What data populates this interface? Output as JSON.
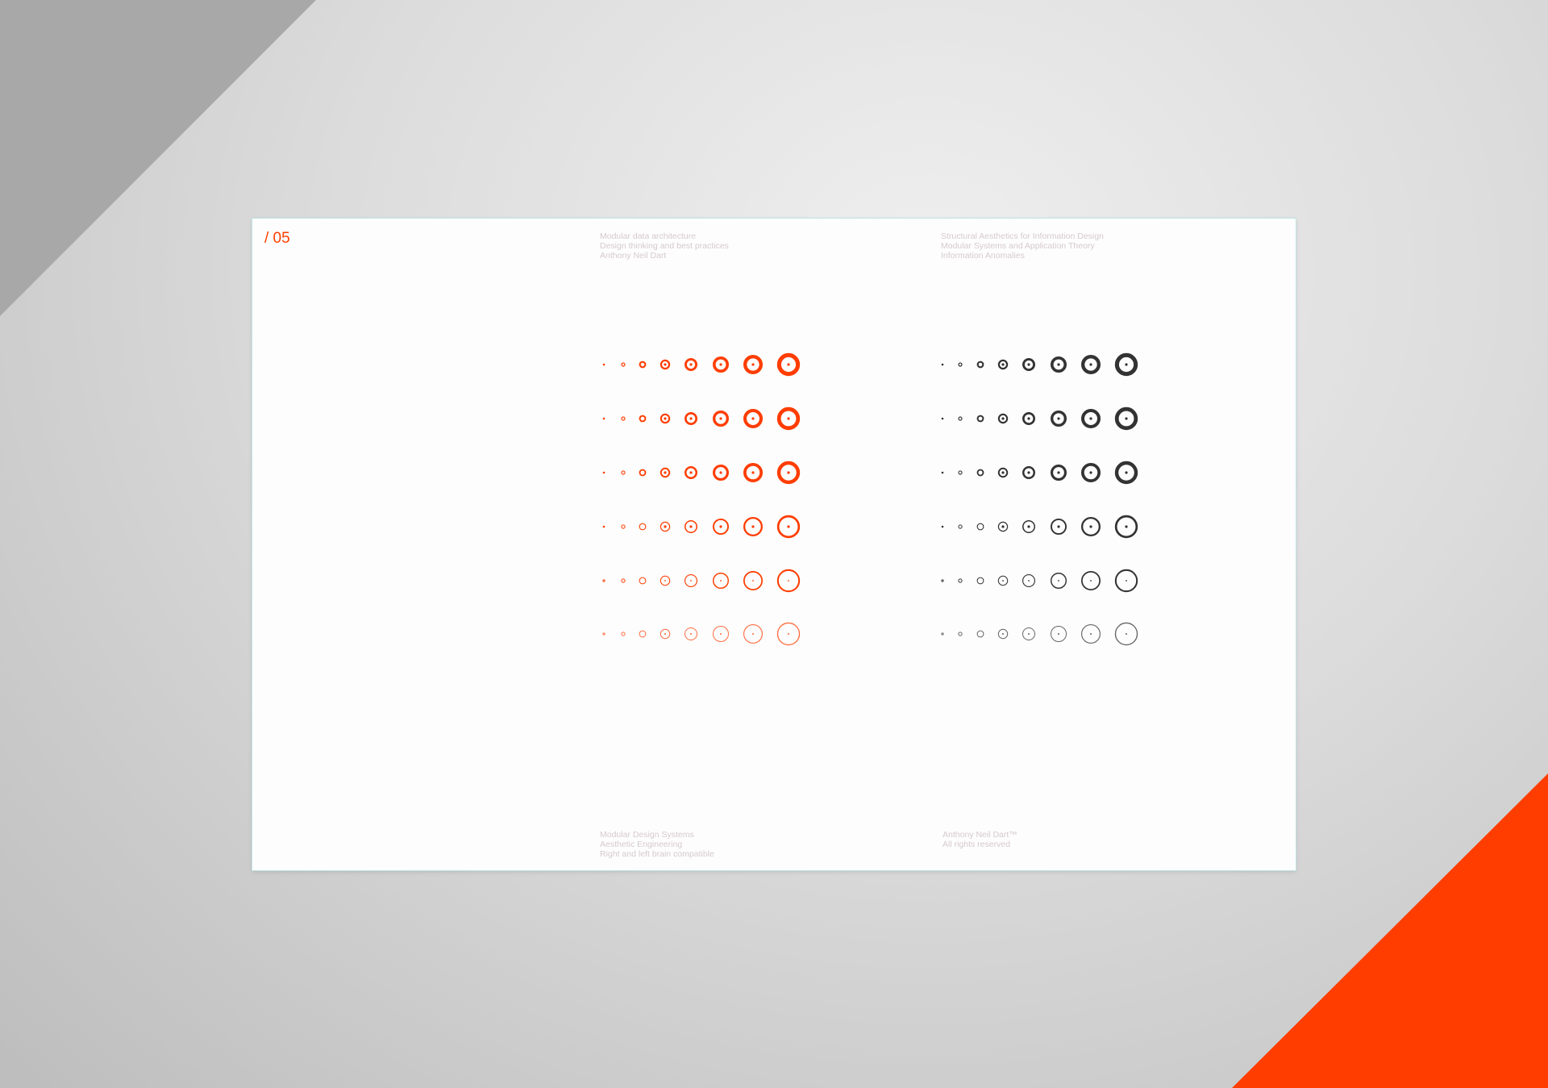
{
  "page_number": "/ 05",
  "header_left": [
    "Modular data architecture",
    "Design thinking and best practices",
    "Anthony Neil Dart"
  ],
  "header_right": [
    "Structural Aesthetics for Information Design",
    "Modular Systems and Application Theory",
    "Information Anomalies"
  ],
  "footer_left": [
    "Modular Design Systems",
    "Aesthetic Engineering",
    "Right and left brain compatible"
  ],
  "footer_right": [
    "Anthony Neil Dart™",
    "All rights reserved"
  ],
  "colors": {
    "accent": "#ff3d00",
    "dark": "#333333",
    "background_triangle_top_left": "#a8a8a8",
    "background_triangle_bottom_right": "#ff3d00"
  },
  "dot_grid": {
    "groups": [
      {
        "name": "orange",
        "color": "#ff3d00"
      },
      {
        "name": "dark",
        "color": "#333333"
      }
    ],
    "rows": 6,
    "columns": 8
  }
}
